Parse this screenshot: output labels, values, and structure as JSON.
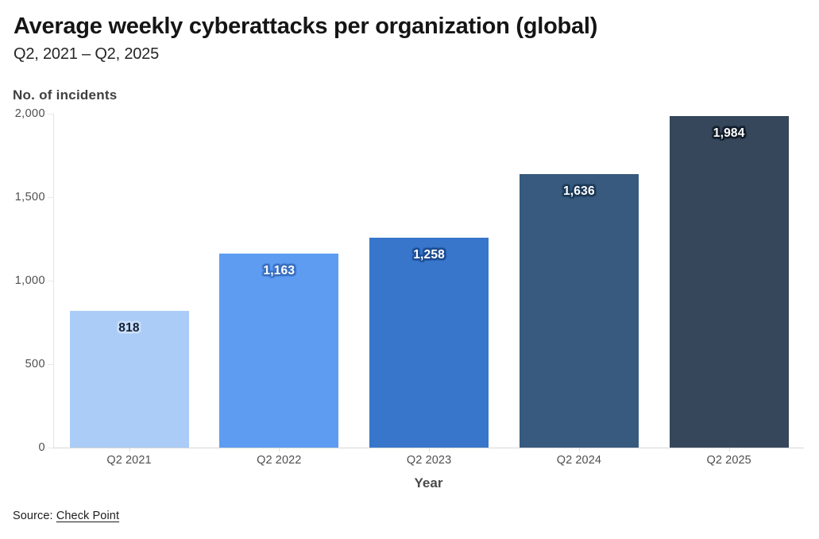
{
  "header": {
    "title": "Average weekly cyberattacks per organization (global)",
    "subtitle": "Q2, 2021 – Q2, 2025"
  },
  "footer": {
    "source_prefix": "Source:",
    "source_link_label": "Check Point"
  },
  "chart_data": {
    "type": "bar",
    "title": "Average weekly cyberattacks per organization (global)",
    "subtitle": "Q2, 2021 – Q2, 2025",
    "categories": [
      "Q2 2021",
      "Q2 2022",
      "Q2 2023",
      "Q2 2024",
      "Q2 2025"
    ],
    "values": [
      818,
      1163,
      1258,
      1636,
      1984
    ],
    "value_labels": [
      "818",
      "1,163",
      "1,258",
      "1,636",
      "1,984"
    ],
    "bar_colors": [
      "#abccf6",
      "#5e9cf2",
      "#3876cb",
      "#375a7e",
      "#36475c"
    ],
    "value_label_colors": [
      "#0f2138",
      "#ffffff",
      "#ffffff",
      "#ffffff",
      "#ffffff"
    ],
    "value_label_halo_colors": [
      "#cde0fa",
      "#3a70c0",
      "#1e4e93",
      "#1e3b58",
      "#151f2b"
    ],
    "xlabel": "Year",
    "ylabel": "No. of incidents",
    "yticks": [
      0,
      500,
      1000,
      1500,
      2000
    ],
    "ytick_labels": [
      "0",
      "500",
      "1,000",
      "1,500",
      "2,000"
    ],
    "ylim": [
      0,
      2000
    ],
    "grid": "ticks-only",
    "legend": "none",
    "source": "Check Point"
  }
}
